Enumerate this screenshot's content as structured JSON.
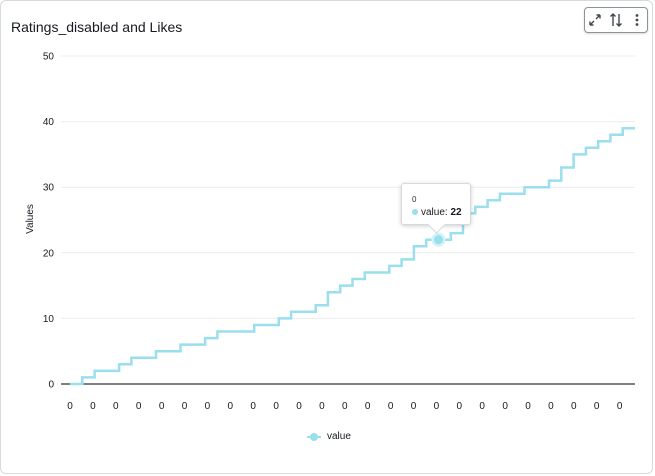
{
  "panel": {
    "title": "Ratings_disabled and Likes",
    "toolbar": {
      "expand_icon": "expand-arrows-icon",
      "sort_icon": "sort-arrows-icon",
      "menu_icon": "more-vertical-icon"
    }
  },
  "tooltip": {
    "category": "0",
    "series_label": "value",
    "value_text": "22"
  },
  "legend": {
    "label": "value"
  },
  "colors": {
    "series": "#99dfee",
    "axis": "#000000",
    "grid": "#e9ebed",
    "text": "#16191f"
  },
  "chart_data": {
    "type": "line",
    "step": true,
    "title": "Ratings_disabled and Likes",
    "xlabel": "",
    "ylabel": "Values",
    "ylim": [
      0,
      50
    ],
    "yticks": [
      0,
      10,
      20,
      30,
      40,
      50
    ],
    "x_tick_labels": [
      "0",
      "0",
      "0",
      "0",
      "0",
      "0",
      "0",
      "0",
      "0",
      "0",
      "0",
      "0",
      "0",
      "0",
      "0",
      "0",
      "0",
      "0",
      "0",
      "0",
      "0",
      "0",
      "0",
      "0",
      "0"
    ],
    "grid": true,
    "legend_position": "bottom",
    "highlighted_point": {
      "category": "0",
      "value": 22
    },
    "series": [
      {
        "name": "value",
        "values": [
          0,
          1,
          2,
          2,
          3,
          4,
          4,
          5,
          5,
          6,
          6,
          7,
          8,
          8,
          8,
          9,
          9,
          10,
          11,
          11,
          12,
          14,
          15,
          16,
          17,
          17,
          18,
          19,
          21,
          22,
          22,
          23,
          26,
          27,
          28,
          29,
          29,
          30,
          30,
          31,
          33,
          35,
          36,
          37,
          38,
          39
        ]
      }
    ]
  }
}
